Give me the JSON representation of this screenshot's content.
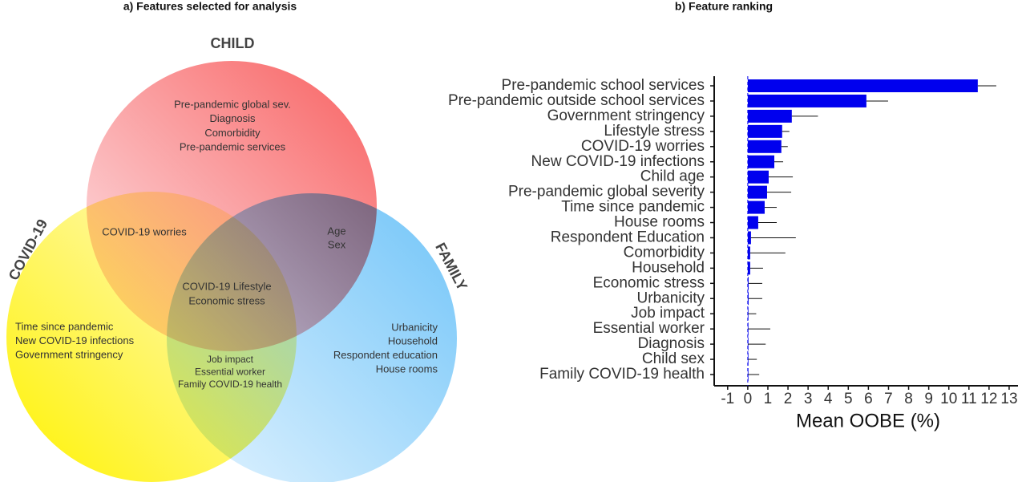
{
  "venn": {
    "title": "a) Features selected for analysis",
    "sets": [
      "CHILD",
      "COVID-19",
      "FAMILY"
    ],
    "regions": [
      {
        "lines": [
          "Pre-pandemic global sev.",
          "Diagnosis",
          "Comorbidity",
          "Pre-pandemic services"
        ]
      },
      {
        "lines": [
          "COVID-19 worries"
        ]
      },
      {
        "lines": [
          "Age",
          "Sex"
        ]
      },
      {
        "lines": [
          "COVID-19 Lifestyle",
          "Economic stress"
        ]
      },
      {
        "lines": [
          "Time since pandemic",
          "New COVID-19 infections",
          "Government stringency"
        ]
      },
      {
        "lines": [
          "Job impact",
          "Essential worker",
          "Family COVID-19 health"
        ]
      },
      {
        "lines": [
          "Urbanicity",
          "Household",
          "Respondent education",
          "House rooms"
        ]
      }
    ]
  },
  "chart_data": {
    "type": "bar",
    "orientation": "horizontal",
    "title": "b) Feature ranking",
    "xlabel": "Mean OOBE (%)",
    "categories": [
      "Pre-pandemic school services",
      "Pre-pandemic outside school services",
      "Government stringency",
      "Lifestyle stress",
      "COVID-19 worries",
      "New COVID-19 infections",
      "Child age",
      "Pre-pandemic global severity",
      "Time since pandemic",
      "House rooms",
      "Respondent Education",
      "Comorbidity",
      "Household",
      "Economic stress",
      "Urbanicity",
      "Job impact",
      "Essential worker",
      "Diagnosis",
      "Child sex",
      "Family COVID-19 health"
    ],
    "values": [
      11.44,
      5.9,
      2.19,
      1.71,
      1.67,
      1.32,
      1.04,
      0.96,
      0.84,
      0.52,
      0.16,
      0.12,
      0.12,
      0.04,
      0.04,
      0.02,
      0.02,
      0.01,
      0.01,
      0.01
    ],
    "errors": [
      0.92,
      1.08,
      1.3,
      0.36,
      0.32,
      0.44,
      1.2,
      1.2,
      0.6,
      0.92,
      2.23,
      1.75,
      0.64,
      0.68,
      0.68,
      0.4,
      1.1,
      0.88,
      0.44,
      0.56
    ],
    "color": "#0000ee",
    "xlim": [
      -1.67,
      13.44
    ],
    "xticks": [
      -1,
      0,
      1,
      2,
      3,
      4,
      5,
      6,
      7,
      8,
      9,
      10,
      11,
      12,
      13
    ]
  }
}
